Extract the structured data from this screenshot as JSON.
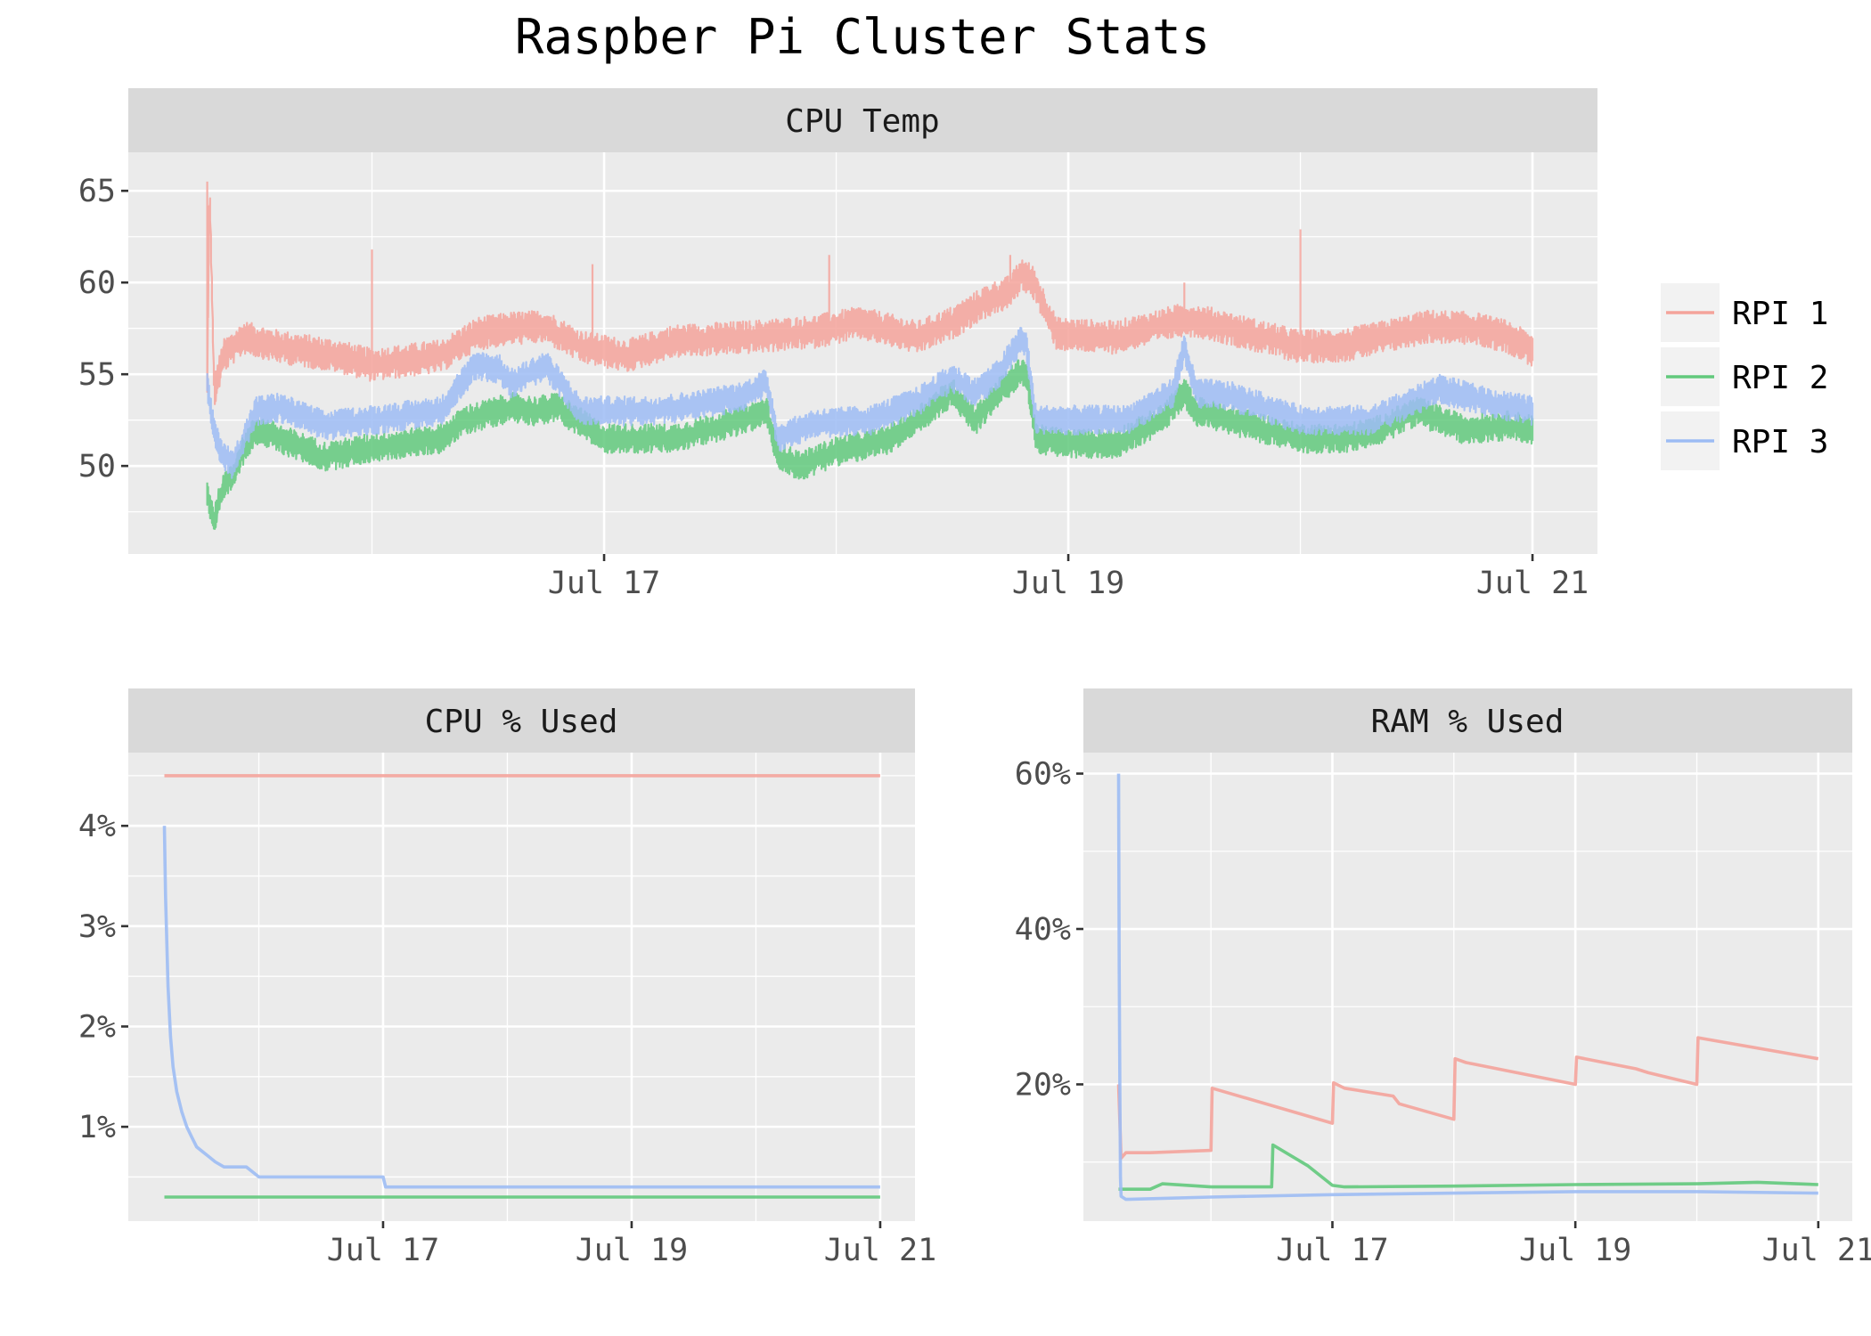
{
  "title": "Raspber Pi Cluster Stats",
  "colors": {
    "RPI 1": "#f4a39b",
    "RPI 2": "#62c97c",
    "RPI 3": "#9dbcf4"
  },
  "legend": {
    "items": [
      "RPI 1",
      "RPI 2",
      "RPI 3"
    ],
    "position": "right"
  },
  "chart_data": [
    {
      "id": "cpu_temp",
      "type": "line",
      "title": "CPU Temp",
      "xlabel": "",
      "ylabel": "",
      "x_ticks": [
        "Jul 17",
        "Jul 19",
        "Jul 21"
      ],
      "x_tick_values": [
        17,
        19,
        21
      ],
      "xlim": [
        14.95,
        21.28
      ],
      "y_ticks": [
        "50",
        "55",
        "60",
        "65"
      ],
      "y_tick_values": [
        50,
        55,
        60,
        65
      ],
      "ylim": [
        45.2,
        67.1
      ],
      "grid": true,
      "series": [
        {
          "name": "RPI 1",
          "noise": 0.9,
          "x": [
            15.29,
            15.3,
            15.32,
            15.36,
            15.45,
            15.6,
            15.85,
            16.0,
            16.3,
            16.45,
            16.6,
            16.75,
            16.9,
            17.1,
            17.3,
            17.6,
            17.9,
            18.1,
            18.2,
            18.35,
            18.5,
            18.65,
            18.75,
            18.8,
            18.85,
            18.95,
            19.2,
            19.35,
            19.5,
            19.6,
            19.75,
            20.0,
            20.2,
            20.35,
            20.55,
            20.75,
            20.9,
            21.0
          ],
          "y": [
            54.5,
            65.5,
            54.0,
            56.0,
            57.0,
            56.5,
            56.0,
            55.5,
            56.0,
            57.2,
            57.5,
            57.6,
            56.5,
            56.0,
            56.8,
            57.0,
            57.3,
            57.8,
            57.5,
            57.0,
            57.8,
            59.0,
            59.5,
            60.5,
            60.0,
            57.2,
            57.0,
            57.5,
            58.0,
            57.8,
            57.3,
            56.5,
            56.6,
            57.0,
            57.6,
            57.5,
            57.0,
            56.3
          ],
          "spikes": [
            [
              15.29,
              65.5
            ],
            [
              16.0,
              61.8
            ],
            [
              16.95,
              61.0
            ],
            [
              17.97,
              61.5
            ],
            [
              20.0,
              62.9
            ],
            [
              18.75,
              61.5
            ],
            [
              19.5,
              60.0
            ]
          ]
        },
        {
          "name": "RPI 2",
          "noise": 0.8,
          "x": [
            15.29,
            15.32,
            15.35,
            15.4,
            15.45,
            15.5,
            15.6,
            15.8,
            16.0,
            16.3,
            16.4,
            16.6,
            16.7,
            16.8,
            17.0,
            17.3,
            17.6,
            17.7,
            17.75,
            17.85,
            18.0,
            18.2,
            18.3,
            18.5,
            18.6,
            18.7,
            18.8,
            18.82,
            18.86,
            19.0,
            19.2,
            19.4,
            19.5,
            19.55,
            19.7,
            20.0,
            20.2,
            20.35,
            20.5,
            20.7,
            20.9,
            21.0
          ],
          "y": [
            48.5,
            47.0,
            48.5,
            49.5,
            51.0,
            52.0,
            51.5,
            50.5,
            51.0,
            51.5,
            52.5,
            53.2,
            53.0,
            53.2,
            51.5,
            51.5,
            52.5,
            53.0,
            50.5,
            50.0,
            50.8,
            51.3,
            52.0,
            54.0,
            52.5,
            54.0,
            55.2,
            55.0,
            51.5,
            51.2,
            51.2,
            52.5,
            54.0,
            53.0,
            52.5,
            51.5,
            51.5,
            52.0,
            53.0,
            52.0,
            52.2,
            52.0
          ]
        },
        {
          "name": "RPI 3",
          "noise": 0.8,
          "x": [
            15.29,
            15.31,
            15.34,
            15.4,
            15.45,
            15.5,
            15.6,
            15.8,
            16.0,
            16.3,
            16.35,
            16.45,
            16.55,
            16.6,
            16.75,
            16.9,
            17.2,
            17.4,
            17.6,
            17.7,
            17.75,
            17.9,
            18.15,
            18.35,
            18.5,
            18.6,
            18.7,
            18.8,
            18.82,
            18.86,
            19.0,
            19.25,
            19.45,
            19.5,
            19.55,
            19.7,
            20.0,
            20.3,
            20.45,
            20.6,
            20.8,
            21.0
          ],
          "y": [
            54.5,
            52.5,
            51.0,
            50.0,
            51.5,
            53.0,
            53.2,
            52.2,
            52.5,
            53.0,
            54.0,
            55.5,
            55.3,
            54.5,
            55.5,
            53.0,
            53.0,
            53.3,
            53.8,
            54.5,
            51.5,
            52.3,
            52.5,
            53.5,
            54.8,
            54.0,
            55.0,
            57.0,
            56.5,
            52.5,
            52.5,
            52.5,
            54.0,
            56.5,
            54.0,
            53.8,
            52.5,
            52.5,
            53.3,
            54.2,
            53.5,
            53.0
          ]
        }
      ]
    },
    {
      "id": "cpu_used",
      "type": "line",
      "title": "CPU % Used",
      "xlabel": "",
      "ylabel": "",
      "x_ticks": [
        "Jul 17",
        "Jul 19",
        "Jul 21"
      ],
      "x_tick_values": [
        17,
        19,
        21
      ],
      "xlim": [
        14.95,
        21.28
      ],
      "y_ticks": [
        "1%",
        "2%",
        "3%",
        "4%"
      ],
      "y_tick_values": [
        1,
        2,
        3,
        4
      ],
      "ylim": [
        0.06,
        4.73
      ],
      "grid": true,
      "series": [
        {
          "name": "RPI 1",
          "x": [
            15.24,
            21.0
          ],
          "y": [
            4.5,
            4.5
          ]
        },
        {
          "name": "RPI 2",
          "x": [
            15.24,
            21.0
          ],
          "y": [
            0.3,
            0.3
          ]
        },
        {
          "name": "RPI 3",
          "x": [
            15.24,
            15.25,
            15.27,
            15.29,
            15.31,
            15.34,
            15.38,
            15.42,
            15.46,
            15.5,
            15.55,
            15.6,
            15.65,
            15.72,
            15.8,
            15.9,
            16.0,
            16.2,
            16.5,
            16.8,
            17.0,
            17.02,
            18.0,
            19.0,
            20.0,
            21.0
          ],
          "y": [
            4.0,
            3.3,
            2.4,
            1.9,
            1.6,
            1.35,
            1.15,
            1.0,
            0.9,
            0.8,
            0.75,
            0.7,
            0.65,
            0.6,
            0.6,
            0.6,
            0.5,
            0.5,
            0.5,
            0.5,
            0.5,
            0.4,
            0.4,
            0.4,
            0.4,
            0.4
          ]
        }
      ]
    },
    {
      "id": "ram_used",
      "type": "line",
      "title": "RAM % Used",
      "xlabel": "",
      "ylabel": "",
      "x_ticks": [
        "Jul 17",
        "Jul 19",
        "Jul 21"
      ],
      "x_tick_values": [
        17,
        19,
        21
      ],
      "xlim": [
        14.95,
        21.28
      ],
      "y_ticks": [
        "20%",
        "40%",
        "60%"
      ],
      "y_tick_values": [
        20,
        40,
        60
      ],
      "ylim": [
        2.4,
        62.7
      ],
      "grid": true,
      "series": [
        {
          "name": "RPI 1",
          "x": [
            15.24,
            15.26,
            15.3,
            15.5,
            16.0,
            16.01,
            17.0,
            17.01,
            17.1,
            17.5,
            17.55,
            18.0,
            18.01,
            18.1,
            19.0,
            19.01,
            19.5,
            19.6,
            20.0,
            20.01,
            21.0
          ],
          "y": [
            20.0,
            10.5,
            11.2,
            11.2,
            11.5,
            19.5,
            15.0,
            20.2,
            19.5,
            18.5,
            17.5,
            15.5,
            23.3,
            22.8,
            20.0,
            23.5,
            22.0,
            21.5,
            20.0,
            26.0,
            23.3
          ]
        },
        {
          "name": "RPI 2",
          "x": [
            15.24,
            15.26,
            15.5,
            15.6,
            16.0,
            16.5,
            16.51,
            16.8,
            17.0,
            17.1,
            18.0,
            19.0,
            20.0,
            20.5,
            21.0
          ],
          "y": [
            6.5,
            6.5,
            6.5,
            7.2,
            6.8,
            6.8,
            12.2,
            9.5,
            7.0,
            6.8,
            6.9,
            7.1,
            7.2,
            7.4,
            7.1
          ]
        },
        {
          "name": "RPI 3",
          "x": [
            15.24,
            15.245,
            15.25,
            15.255,
            15.26,
            15.3,
            16.0,
            17.0,
            18.0,
            19.0,
            20.0,
            21.0
          ],
          "y": [
            60.0,
            35.0,
            20.0,
            8.0,
            5.6,
            5.2,
            5.5,
            5.8,
            6.0,
            6.2,
            6.2,
            6.0
          ]
        }
      ]
    }
  ]
}
